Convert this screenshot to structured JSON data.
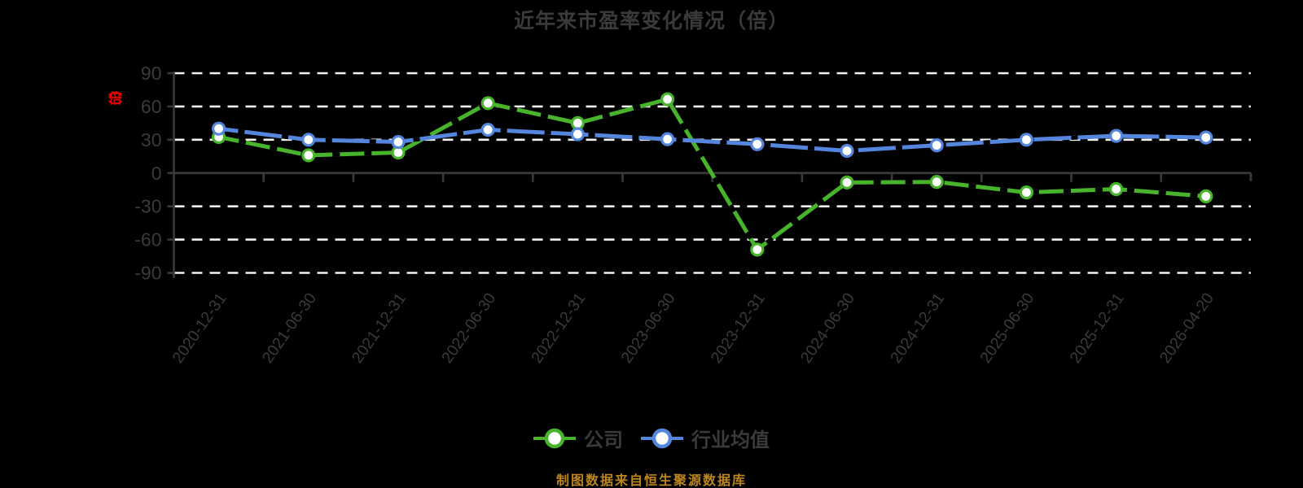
{
  "title": "近年来市盈率变化情况（倍）",
  "y_axis_unit_label": "（倍）",
  "footer_note": "制图数据来自恒生聚源数据库",
  "colors": {
    "background": "#000000",
    "text": "#3a3a3a",
    "gridline": "#f2f2f2",
    "axis": "#3a3a3a",
    "company_green": "#47b42c",
    "industry_blue": "#5486de",
    "unit_label_red": "#e60000",
    "footer_orange": "#bd861b",
    "marker_fill": "#ffffff"
  },
  "legend": {
    "items": [
      {
        "label": "公司",
        "color": "#47b42c"
      },
      {
        "label": "行业均值",
        "color": "#5486de"
      }
    ]
  },
  "chart_data": {
    "type": "line",
    "title": "近年来市盈率变化情况（倍）",
    "categories": [
      "2020-12-31",
      "2021-06-30",
      "2021-12-31",
      "2022-06-30",
      "2022-12-31",
      "2023-06-30",
      "2023-12-31",
      "2024-06-30",
      "2024-12-31",
      "2025-06-30",
      "2025-12-31",
      "2026-04-20"
    ],
    "series": [
      {
        "name": "公司",
        "color": "#47b42c",
        "values": [
          32.5,
          16,
          18.5,
          63,
          45,
          66.5,
          -69,
          -8.5,
          -8,
          -17.5,
          -14.5,
          -21
        ]
      },
      {
        "name": "行业均值",
        "color": "#5486de",
        "values": [
          40,
          30,
          28,
          39,
          35,
          30.5,
          26,
          20,
          25,
          30,
          33.5,
          32
        ]
      }
    ],
    "ylabel": "（倍）",
    "ylim": [
      -90,
      90
    ],
    "yticks": [
      90,
      60,
      30,
      0,
      -30,
      -60,
      -90
    ],
    "grid": "horizontal-dashed",
    "legend_position": "bottom",
    "annotation": "制图数据来自恒生聚源数据库"
  }
}
